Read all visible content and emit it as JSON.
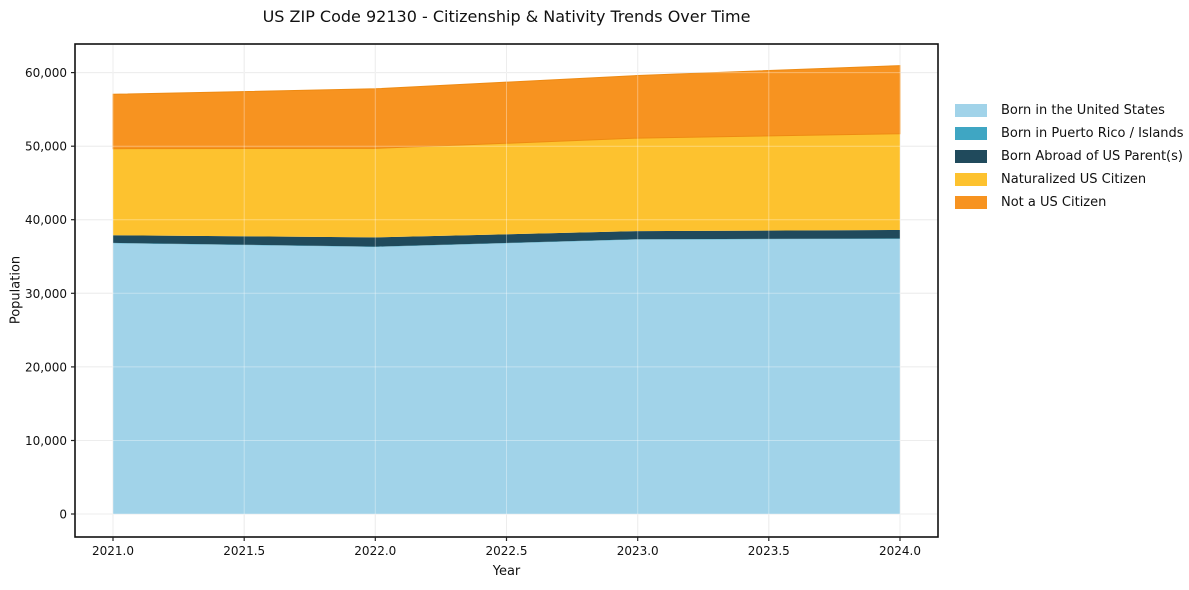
{
  "chart_data": {
    "type": "area",
    "stacked": true,
    "title": "US ZIP Code 92130 - Citizenship & Nativity Trends Over Time",
    "xlabel": "Year",
    "ylabel": "Population",
    "grid": true,
    "legend_position": "right-outside",
    "x": [
      2021,
      2022,
      2023,
      2024
    ],
    "series": [
      {
        "name": "Born in the United States",
        "color": "#a1d3e9",
        "values": [
          36800,
          36300,
          37300,
          37400
        ]
      },
      {
        "name": "Born in Puerto Rico / Islands",
        "color": "#3fa6c3",
        "values": [
          50,
          50,
          50,
          50
        ]
      },
      {
        "name": "Born Abroad of US Parent(s)",
        "color": "#204a5c",
        "values": [
          1050,
          1250,
          1100,
          1150
        ]
      },
      {
        "name": "Naturalized US Citizen",
        "color": "#fdc22f",
        "values": [
          11750,
          12100,
          12650,
          13100
        ]
      },
      {
        "name": "Not a US Citizen",
        "color": "#f79320",
        "edge_color": "#ee8a12",
        "values": [
          7400,
          8100,
          8500,
          9250
        ]
      }
    ],
    "x_ticks": [
      2021.0,
      2021.5,
      2022.0,
      2022.5,
      2023.0,
      2023.5,
      2024.0
    ],
    "x_tick_labels": [
      "2021.0",
      "2021.5",
      "2022.0",
      "2022.5",
      "2023.0",
      "2023.5",
      "2024.0"
    ],
    "y_ticks": [
      0,
      10000,
      20000,
      30000,
      40000,
      50000,
      60000
    ],
    "y_tick_labels": [
      "0",
      "10,000",
      "20,000",
      "30,000",
      "40,000",
      "50,000",
      "60,000"
    ],
    "xlim": [
      2020.855,
      2024.145
    ],
    "ylim": [
      -3120,
      63885
    ],
    "colors": {
      "grid_under": "#e4e4e4",
      "grid_over": "rgba(255,255,255,0.35)",
      "frame": "#111111",
      "tick": "#222222"
    }
  }
}
